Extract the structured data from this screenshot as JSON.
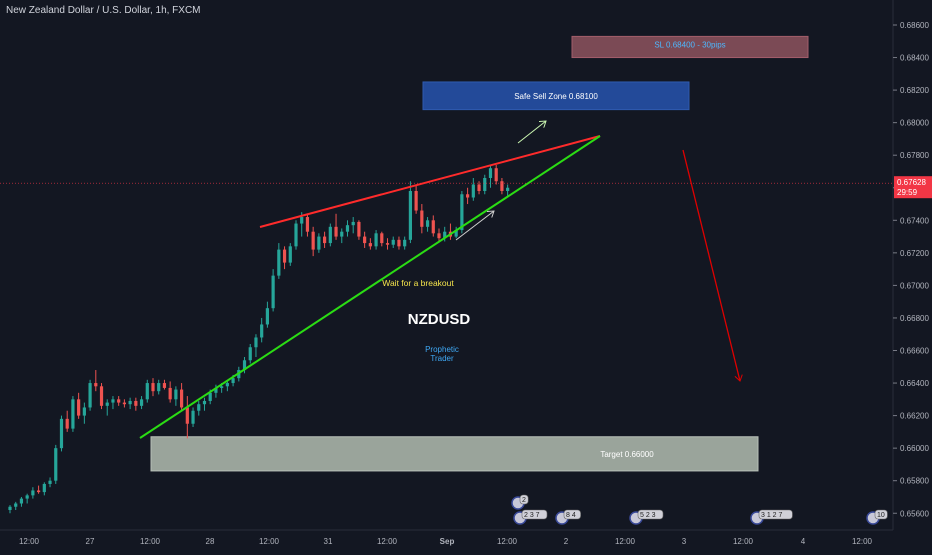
{
  "chart_data": {
    "type": "candlestick",
    "title": "New Zealand Dollar / U.S. Dollar, 1h, FXCM",
    "symbol": "NZDUSD",
    "author": [
      "Prophetic",
      "Trader"
    ],
    "ylim": [
      0.6556,
      0.687
    ],
    "yticks": [
      "0.68600",
      "0.68400",
      "0.68200",
      "0.68000",
      "0.67800",
      "0.67600",
      "0.67400",
      "0.67200",
      "0.67000",
      "0.66800",
      "0.66600",
      "0.66400",
      "0.66200",
      "0.66000",
      "0.65800",
      "0.65600"
    ],
    "xticks": [
      "12:00",
      "27",
      "12:00",
      "28",
      "12:00",
      "31",
      "12:00",
      "Sep",
      "12:00",
      "2",
      "12:00",
      "3",
      "12:00",
      "4",
      "12:00"
    ],
    "current_price": "0.67628",
    "countdown": "29:59",
    "zones": {
      "stop_loss": {
        "label": "SL 0.68400   - 30pips",
        "low": 0.684,
        "high": 0.6853
      },
      "sell": {
        "label": "Safe Sell Zone 0.68100",
        "low": 0.6808,
        "high": 0.6825
      },
      "target": {
        "label": "Target 0.66000",
        "low": 0.6586,
        "high": 0.6607
      }
    },
    "annotations": {
      "breakout": "Wait for a breakout"
    },
    "event_badges": [
      "2",
      "2 3 7",
      "8",
      "4",
      "5",
      "2 3",
      "3 1 2 7",
      "10"
    ],
    "colors": {
      "background": "#131722",
      "up": "#26a69a",
      "down": "#ef5350",
      "resistance": "#ff2b2b",
      "support": "#2bdc14",
      "price_line": "#f23645",
      "sell_zone": "#234a99",
      "sl_zone": "#7b4a55",
      "target_zone": "#9aa49b",
      "yellow_text": "#f5e44c",
      "blue_text": "#3fa8f4"
    },
    "candles": [
      [
        0.6562,
        0.6565,
        0.656,
        0.6564
      ],
      [
        0.6564,
        0.6567,
        0.6562,
        0.6566
      ],
      [
        0.6566,
        0.657,
        0.6564,
        0.6569
      ],
      [
        0.6569,
        0.6572,
        0.6566,
        0.6571
      ],
      [
        0.6571,
        0.6576,
        0.6569,
        0.6574
      ],
      [
        0.6574,
        0.6577,
        0.6572,
        0.6573
      ],
      [
        0.6573,
        0.6579,
        0.6571,
        0.6578
      ],
      [
        0.6578,
        0.6582,
        0.6576,
        0.658
      ],
      [
        0.658,
        0.6602,
        0.6578,
        0.66
      ],
      [
        0.66,
        0.662,
        0.6598,
        0.6618
      ],
      [
        0.6618,
        0.6623,
        0.661,
        0.6612
      ],
      [
        0.6612,
        0.6632,
        0.661,
        0.663
      ],
      [
        0.663,
        0.6634,
        0.6618,
        0.662
      ],
      [
        0.662,
        0.6628,
        0.6615,
        0.6625
      ],
      [
        0.6625,
        0.6642,
        0.6623,
        0.664
      ],
      [
        0.664,
        0.6648,
        0.6635,
        0.6638
      ],
      [
        0.6638,
        0.664,
        0.6624,
        0.6626
      ],
      [
        0.6626,
        0.663,
        0.662,
        0.6628
      ],
      [
        0.6628,
        0.6632,
        0.6624,
        0.663
      ],
      [
        0.663,
        0.6632,
        0.6626,
        0.6628
      ],
      [
        0.6628,
        0.663,
        0.6625,
        0.6627
      ],
      [
        0.6627,
        0.6631,
        0.6624,
        0.6629
      ],
      [
        0.6629,
        0.6631,
        0.6623,
        0.6626
      ],
      [
        0.6626,
        0.6632,
        0.6624,
        0.663
      ],
      [
        0.663,
        0.6642,
        0.6628,
        0.664
      ],
      [
        0.664,
        0.6643,
        0.6632,
        0.6635
      ],
      [
        0.6635,
        0.6642,
        0.6633,
        0.664
      ],
      [
        0.664,
        0.6642,
        0.6636,
        0.6637
      ],
      [
        0.6637,
        0.6641,
        0.6628,
        0.663
      ],
      [
        0.663,
        0.6638,
        0.6626,
        0.6636
      ],
      [
        0.6636,
        0.664,
        0.6623,
        0.6625
      ],
      [
        0.6625,
        0.6632,
        0.6606,
        0.6615
      ],
      [
        0.6615,
        0.6625,
        0.6613,
        0.6623
      ],
      [
        0.6623,
        0.6629,
        0.662,
        0.6627
      ],
      [
        0.6627,
        0.6631,
        0.6623,
        0.6629
      ],
      [
        0.6629,
        0.6636,
        0.6627,
        0.6634
      ],
      [
        0.6634,
        0.6639,
        0.6631,
        0.6637
      ],
      [
        0.6637,
        0.664,
        0.6634,
        0.6638
      ],
      [
        0.6638,
        0.6641,
        0.6635,
        0.664
      ],
      [
        0.664,
        0.6645,
        0.6638,
        0.6643
      ],
      [
        0.6643,
        0.665,
        0.6641,
        0.6648
      ],
      [
        0.6648,
        0.6656,
        0.6646,
        0.6654
      ],
      [
        0.6654,
        0.6664,
        0.6652,
        0.6662
      ],
      [
        0.6662,
        0.667,
        0.6656,
        0.6668
      ],
      [
        0.6668,
        0.668,
        0.6665,
        0.6676
      ],
      [
        0.6676,
        0.669,
        0.6674,
        0.6686
      ],
      [
        0.6686,
        0.671,
        0.6684,
        0.6706
      ],
      [
        0.6706,
        0.6726,
        0.6704,
        0.6722
      ],
      [
        0.6722,
        0.6724,
        0.671,
        0.6714
      ],
      [
        0.6714,
        0.6726,
        0.6712,
        0.6724
      ],
      [
        0.6724,
        0.674,
        0.6722,
        0.6738
      ],
      [
        0.6738,
        0.6745,
        0.673,
        0.6742
      ],
      [
        0.6742,
        0.6744,
        0.673,
        0.6733
      ],
      [
        0.6733,
        0.6736,
        0.6718,
        0.6722
      ],
      [
        0.6722,
        0.6732,
        0.672,
        0.673
      ],
      [
        0.673,
        0.6733,
        0.6723,
        0.6726
      ],
      [
        0.6726,
        0.6738,
        0.6724,
        0.6736
      ],
      [
        0.6736,
        0.6744,
        0.6728,
        0.673
      ],
      [
        0.673,
        0.6735,
        0.6726,
        0.6733
      ],
      [
        0.6733,
        0.674,
        0.673,
        0.6737
      ],
      [
        0.6737,
        0.6742,
        0.6732,
        0.6739
      ],
      [
        0.6739,
        0.674,
        0.6728,
        0.673
      ],
      [
        0.673,
        0.6733,
        0.6723,
        0.6726
      ],
      [
        0.6726,
        0.6729,
        0.6722,
        0.6724
      ],
      [
        0.6724,
        0.6734,
        0.6722,
        0.6732
      ],
      [
        0.6732,
        0.6733,
        0.6724,
        0.6726
      ],
      [
        0.6726,
        0.6729,
        0.6722,
        0.6725
      ],
      [
        0.6725,
        0.673,
        0.6723,
        0.6728
      ],
      [
        0.6728,
        0.673,
        0.6722,
        0.6724
      ],
      [
        0.6724,
        0.673,
        0.6722,
        0.6728
      ],
      [
        0.6728,
        0.6764,
        0.6726,
        0.6758
      ],
      [
        0.6758,
        0.6762,
        0.6744,
        0.6746
      ],
      [
        0.6746,
        0.675,
        0.6732,
        0.6736
      ],
      [
        0.6736,
        0.6742,
        0.6733,
        0.674
      ],
      [
        0.674,
        0.6743,
        0.673,
        0.6732
      ],
      [
        0.6732,
        0.6735,
        0.6727,
        0.6729
      ],
      [
        0.6729,
        0.6736,
        0.6727,
        0.6733
      ],
      [
        0.6733,
        0.6738,
        0.6728,
        0.673
      ],
      [
        0.673,
        0.6736,
        0.6729,
        0.6734
      ],
      [
        0.6734,
        0.6758,
        0.6732,
        0.6756
      ],
      [
        0.6756,
        0.676,
        0.675,
        0.6754
      ],
      [
        0.6754,
        0.6766,
        0.6752,
        0.6762
      ],
      [
        0.6762,
        0.6764,
        0.6756,
        0.6758
      ],
      [
        0.6758,
        0.6768,
        0.6756,
        0.6766
      ],
      [
        0.6766,
        0.6774,
        0.676,
        0.6772
      ],
      [
        0.6772,
        0.6774,
        0.6762,
        0.6764
      ],
      [
        0.6764,
        0.6766,
        0.6756,
        0.6758
      ],
      [
        0.6758,
        0.6762,
        0.6755,
        0.676
      ]
    ]
  }
}
